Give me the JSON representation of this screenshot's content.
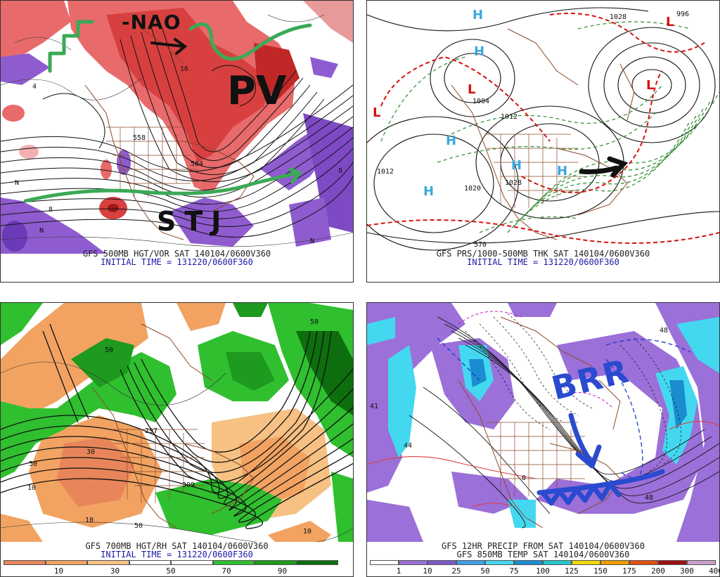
{
  "panels": {
    "top_left": {
      "caption_line1": "GFS 500MB HGT/VOR SAT 140104/0600V360",
      "caption_line2": "INITIAL TIME = 131220/0600F360",
      "annotations": {
        "nao": "-NAO",
        "pv": "PV",
        "stj": "STJ"
      },
      "contour_labels": [
        "558",
        "584",
        "N",
        "N",
        "N",
        "8",
        "8",
        "16",
        "4"
      ]
    },
    "top_right": {
      "caption_line1": "GFS PRS/1000-500MB THK SAT 140104/0600V360",
      "caption_line2": "INITIAL TIME = 131220/0600F360",
      "pressure_centers": [
        "H",
        "H",
        "H",
        "H",
        "H",
        "H",
        "L",
        "L",
        "L",
        "L"
      ],
      "isobar_labels": [
        "1012",
        "1020",
        "1028",
        "1004",
        "1012",
        "1028",
        "996",
        "570"
      ]
    },
    "bottom_left": {
      "caption_line1": "GFS 700MB HGT/RH SAT 140104/0600V360",
      "caption_line2": "INITIAL TIME = 131220/0600F360",
      "legend_labels": [
        "10",
        "30",
        "50",
        "70",
        "90"
      ],
      "legend_colors": [
        "#e8855a",
        "#f2a361",
        "#f6c183",
        "#ffffff",
        "#ffffff",
        "#2fbf2f",
        "#1e9a1e",
        "#0d6e0d"
      ],
      "contour_labels": [
        "50",
        "10",
        "30",
        "50",
        "10",
        "50",
        "309",
        "297",
        "10",
        "50"
      ]
    },
    "bottom_right": {
      "caption_line1": "GFS 12HR PRECIP FROM SAT 140104/0600V360",
      "caption_line2": "GFS 850MB TEMP SAT 140104/0600V360",
      "annotation": "BRR",
      "legend_labels": [
        "1",
        "10",
        "25",
        "50",
        "75",
        "100",
        "125",
        "150",
        "175",
        "200",
        "300",
        "400"
      ],
      "legend_colors": [
        "#ffffff",
        "#9b70d8",
        "#7a58c8",
        "#3ea0e6",
        "#44d8f0",
        "#1a8cd0",
        "#24c8c8",
        "#f0d800",
        "#f09c00",
        "#e05010",
        "#a01010",
        "#c8a0c8"
      ],
      "point_labels": [
        "48",
        "44",
        "41",
        "48",
        "0"
      ]
    }
  }
}
